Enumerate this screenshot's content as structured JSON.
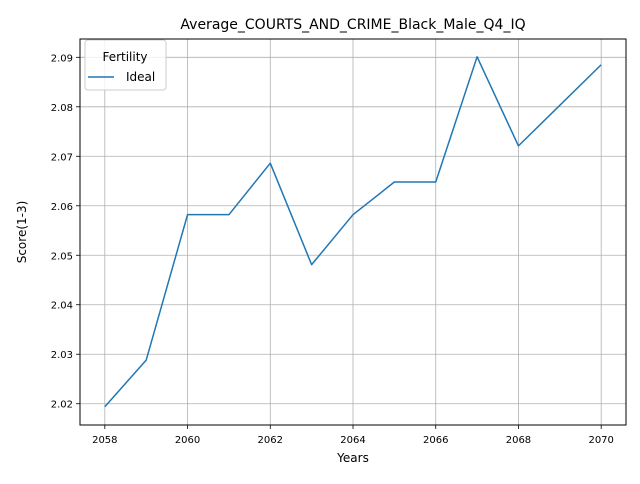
{
  "chart_data": {
    "type": "line",
    "title": "Average_COURTS_AND_CRIME_Black_Male_Q4_IQ",
    "xlabel": "Years",
    "ylabel": "Score(1-3)",
    "xlim": [
      2057.4,
      2070.6
    ],
    "ylim": [
      2.0157,
      2.0937
    ],
    "xticks": [
      2058,
      2060,
      2062,
      2064,
      2066,
      2068,
      2070
    ],
    "yticks": [
      2.02,
      2.03,
      2.04,
      2.05,
      2.06,
      2.07,
      2.08,
      2.09
    ],
    "x": [
      2058,
      2059,
      2060,
      2061,
      2062,
      2063,
      2064,
      2065,
      2066,
      2067,
      2068,
      2069,
      2070
    ],
    "series": [
      {
        "name": "Ideal",
        "color": "#1f77b4",
        "values": [
          2.0194,
          2.0288,
          2.0582,
          2.0582,
          2.0686,
          2.0481,
          2.0582,
          2.0648,
          2.0648,
          2.0901,
          2.0721,
          2.0803,
          2.0885
        ]
      }
    ],
    "legend": {
      "title": "Fertility",
      "position": "top-left"
    },
    "grid": true
  }
}
